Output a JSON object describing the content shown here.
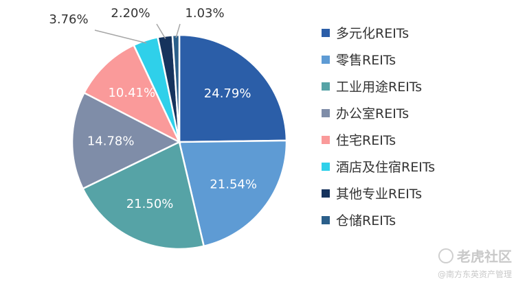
{
  "chart_data": {
    "type": "pie",
    "title": "",
    "slices": [
      {
        "label": "多元化REITs",
        "value": 24.79,
        "display": "24.79%",
        "color": "#2b5ea8"
      },
      {
        "label": "零售REITs",
        "value": 21.54,
        "display": "21.54%",
        "color": "#5e9bd4"
      },
      {
        "label": "工业用途REITs",
        "value": 21.5,
        "display": "21.50%",
        "color": "#56a3a6"
      },
      {
        "label": "办公室REITs",
        "value": 14.78,
        "display": "14.78%",
        "color": "#7f8da8"
      },
      {
        "label": "住宅REITs",
        "value": 10.41,
        "display": "10.41%",
        "color": "#fa9a9a"
      },
      {
        "label": "酒店及住宿REITs",
        "value": 3.76,
        "display": "3.76%",
        "color": "#2fd0ea"
      },
      {
        "label": "其他专业REITs",
        "value": 2.2,
        "display": "2.20%",
        "color": "#16335d"
      },
      {
        "label": "仓储REITs",
        "value": 1.03,
        "display": "1.03%",
        "color": "#2b5f8a"
      }
    ],
    "legend_position": "right"
  },
  "watermark": {
    "logo": "老虎社区",
    "sub": "@南方东英资产管理"
  }
}
